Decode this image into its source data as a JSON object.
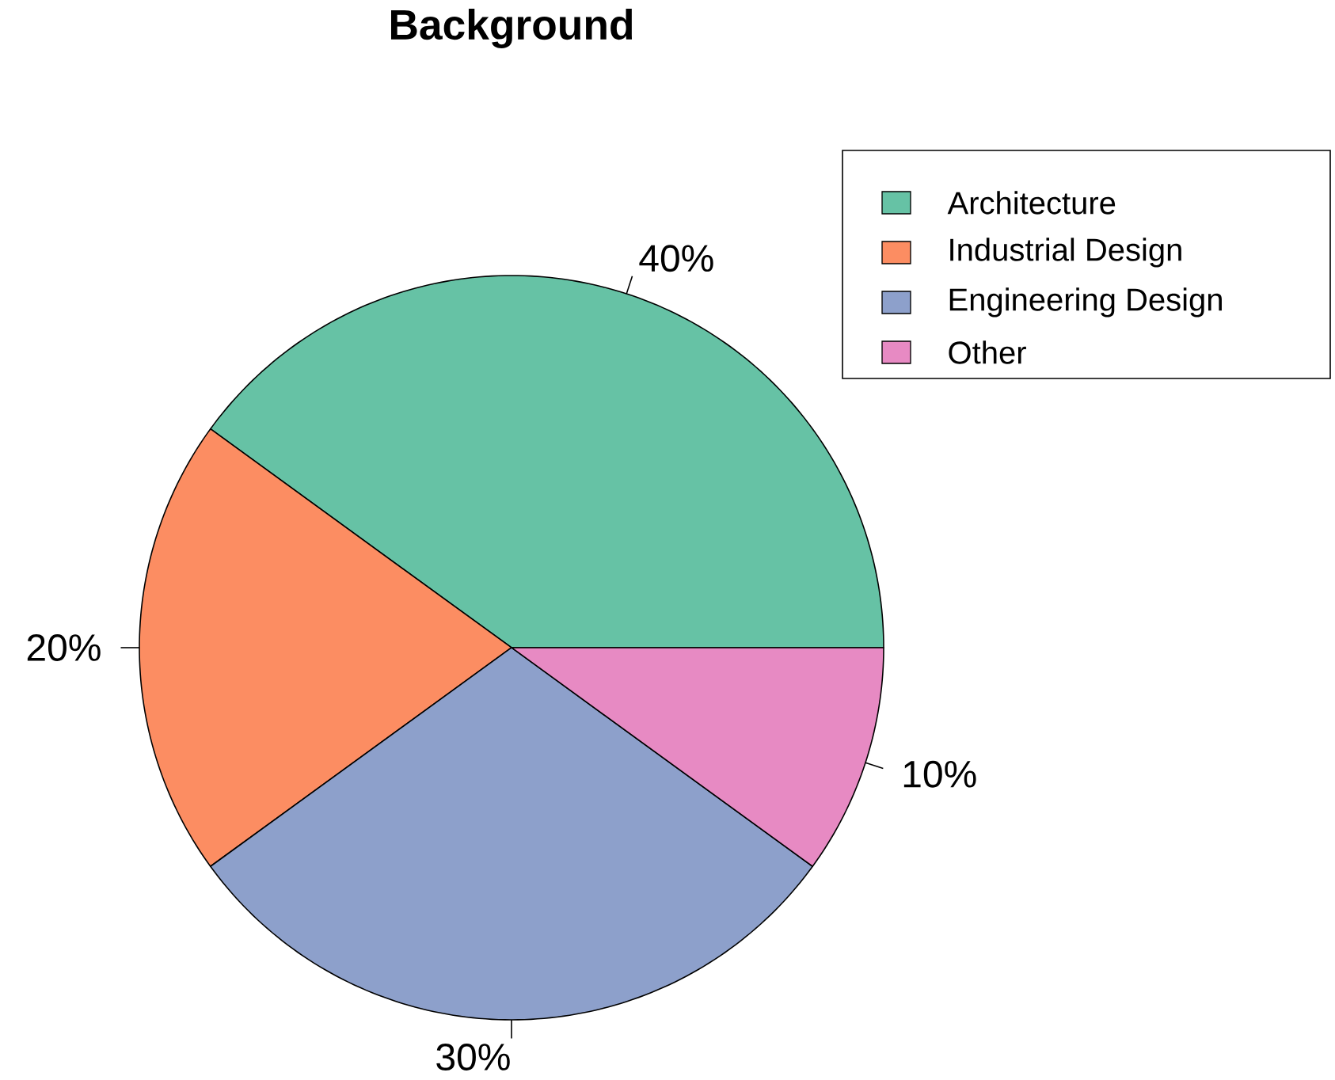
{
  "chart_data": {
    "type": "pie",
    "title": "Background",
    "categories": [
      "Architecture",
      "Industrial Design",
      "Engineering Design",
      "Other"
    ],
    "values": [
      40,
      20,
      30,
      10
    ],
    "colors": [
      "#66c2a5",
      "#fc8d62",
      "#8da0cb",
      "#e78ac3"
    ],
    "value_labels": [
      "40%",
      "20%",
      "30%",
      "10%"
    ],
    "legend": "top right"
  }
}
